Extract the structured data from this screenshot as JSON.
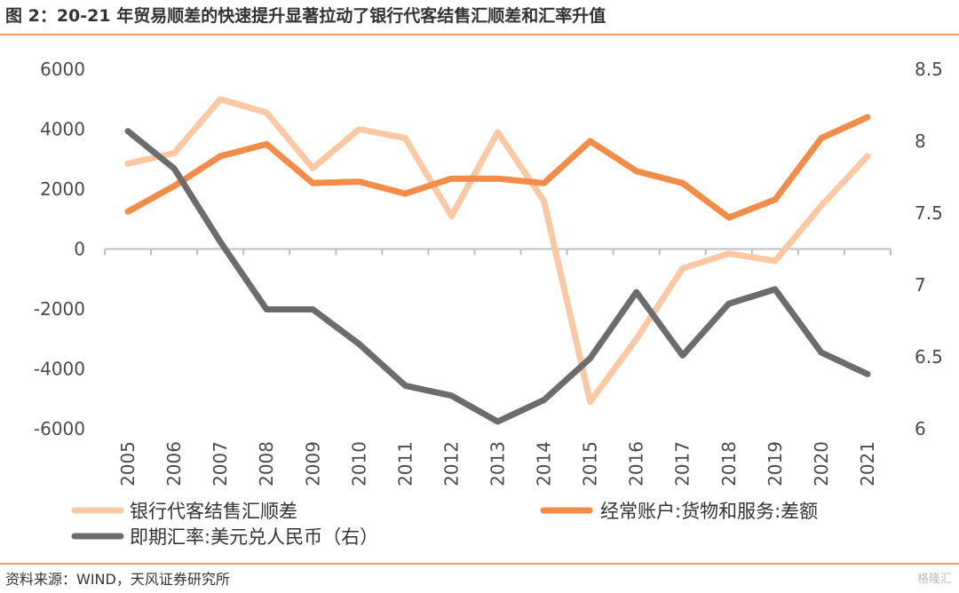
{
  "header": {
    "title": "图 2：20-21 年贸易顺差的快速提升显著拉动了银行代客结售汇顺差和汇率升值"
  },
  "footer": {
    "source": "资料来源：WIND，天风证券研究所",
    "watermark": "格隆汇"
  },
  "chart_data": {
    "type": "line",
    "categories": [
      "2005",
      "2006",
      "2007",
      "2008",
      "2009",
      "2010",
      "2011",
      "2012",
      "2013",
      "2014",
      "2015",
      "2016",
      "2017",
      "2018",
      "2019",
      "2020",
      "2021"
    ],
    "y_left": {
      "ylim": [
        -6000,
        6000
      ],
      "ticks": [
        6000,
        4000,
        2000,
        0,
        -2000,
        -4000,
        -6000
      ],
      "tick_labels": [
        "6000",
        "4000",
        "2000",
        "0",
        "-2000",
        "-4000",
        "-6000"
      ]
    },
    "y_right": {
      "ylim": [
        6,
        8.5
      ],
      "ticks": [
        8.5,
        8,
        7.5,
        7,
        6.5,
        6
      ],
      "tick_labels": [
        "8.5",
        "8",
        "7.5",
        "7",
        "6.5",
        "6"
      ]
    },
    "grid": false,
    "legend_position": "bottom",
    "series": [
      {
        "name": "银行代客结售汇顺差",
        "axis": "left",
        "color": "#fac8a2",
        "values": [
          2850,
          3200,
          5000,
          4550,
          2700,
          4000,
          3700,
          1100,
          3900,
          1600,
          -5100,
          -3000,
          -650,
          -150,
          -400,
          1450,
          3100
        ]
      },
      {
        "name": "经常账户:货物和服务:差额",
        "axis": "left",
        "color": "#f28c48",
        "values": [
          1250,
          2100,
          3100,
          3500,
          2200,
          2250,
          1850,
          2350,
          2350,
          2200,
          3600,
          2600,
          2200,
          1050,
          1650,
          3700,
          4400
        ]
      },
      {
        "name": "即期汇率:美元兑人民币（右）",
        "axis": "right",
        "color": "#6c6c6c",
        "values": [
          8.07,
          7.81,
          7.3,
          6.83,
          6.83,
          6.59,
          6.3,
          6.23,
          6.05,
          6.2,
          6.49,
          6.95,
          6.51,
          6.87,
          6.97,
          6.53,
          6.38
        ]
      }
    ]
  }
}
